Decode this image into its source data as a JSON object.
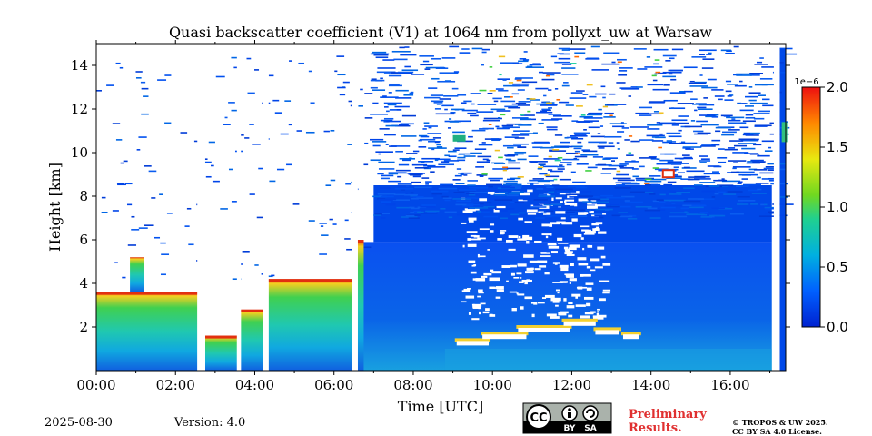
{
  "chart_data": {
    "type": "heatmap",
    "title": "Quasi backscatter coefficient (V1) at 1064 nm from pollyxt_uw at Warsaw",
    "xlabel": "Time [UTC]",
    "ylabel": "Height [km]",
    "xlim": [
      0,
      17.4
    ],
    "ylim": [
      0,
      15
    ],
    "x_ticks": [
      0,
      2,
      4,
      6,
      8,
      10,
      12,
      14,
      16
    ],
    "x_tick_labels": [
      "00:00",
      "02:00",
      "04:00",
      "06:00",
      "08:00",
      "10:00",
      "12:00",
      "14:00",
      "16:00"
    ],
    "y_ticks": [
      2,
      4,
      6,
      8,
      10,
      12,
      14
    ],
    "y_tick_labels": [
      "2",
      "4",
      "6",
      "8",
      "10",
      "12",
      "14"
    ],
    "colorbar": {
      "range": [
        0.0,
        2.0
      ],
      "ticks": [
        0.0,
        0.5,
        1.0,
        1.5,
        2.0
      ],
      "tick_labels": [
        "0.0",
        "0.5",
        "1.0",
        "1.5",
        "2.0"
      ],
      "multiplier": "1e−6",
      "colormap": "jet"
    },
    "grid": false,
    "features": {
      "boundary_layer_height_km": [
        [
          0.0,
          3.6
        ],
        [
          1.0,
          3.3
        ],
        [
          2.5,
          2.4
        ],
        [
          4.3,
          4.2
        ],
        [
          6.3,
          3.5
        ],
        [
          7.0,
          4.0
        ],
        [
          9.0,
          1.5
        ],
        [
          11.5,
          2.4
        ],
        [
          12.5,
          2.0
        ],
        [
          17.2,
          1.8
        ]
      ],
      "data_gaps_hours": [
        [
          2.55,
          2.75
        ],
        [
          3.55,
          3.65
        ],
        [
          4.2,
          4.35
        ],
        [
          6.45,
          6.6
        ],
        [
          17.1,
          17.25
        ]
      ],
      "cloud_top_layer_km": [
        [
          11.0,
          2.0
        ],
        [
          12.5,
          2.2
        ],
        [
          13.5,
          1.9
        ]
      ]
    }
  },
  "footer": {
    "date": "2025-08-30",
    "version": "Version: 4.0",
    "preliminary_line1": "Preliminary",
    "preliminary_line2": "Results.",
    "copyright": "© TROPOS & UW 2025.",
    "license": "CC BY SA 4.0 License.",
    "cc_badge": "CC",
    "by_label": "BY",
    "sa_label": "SA"
  },
  "colors": {
    "low": "#0047e0",
    "mid": "#2cd23c",
    "high": "#ff3000",
    "prelim": "#e03030"
  }
}
